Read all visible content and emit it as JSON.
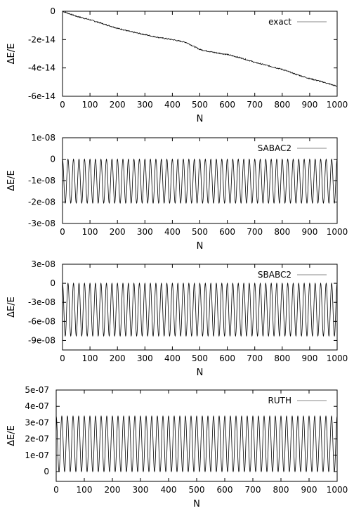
{
  "chart_data": [
    {
      "type": "line",
      "series": [
        {
          "name": "exact",
          "behavior": "drift",
          "x": [
            0,
            50,
            100,
            150,
            200,
            250,
            300,
            350,
            400,
            450,
            500,
            550,
            600,
            650,
            700,
            750,
            800,
            850,
            900,
            950,
            1000
          ],
          "values": [
            0,
            -3.5e-15,
            -6e-15,
            -9e-15,
            -1.2e-14,
            -1.45e-14,
            -1.65e-14,
            -1.85e-14,
            -2e-14,
            -2.2e-14,
            -2.7e-14,
            -2.9e-14,
            -3.05e-14,
            -3.3e-14,
            -3.6e-14,
            -3.85e-14,
            -4.1e-14,
            -4.45e-14,
            -4.75e-14,
            -5e-14,
            -5.3e-14
          ]
        }
      ],
      "xlabel": "N",
      "ylabel": "ΔE/E",
      "xlim": [
        0,
        1000
      ],
      "ylim": [
        -6e-14,
        0
      ],
      "xticks": [
        "0",
        "100",
        "200",
        "300",
        "400",
        "500",
        "600",
        "700",
        "800",
        "900",
        "1000"
      ],
      "yticks": [
        "0",
        "-2e-14",
        "-4e-14",
        "-6e-14"
      ],
      "ytick_values": [
        0,
        -2e-14,
        -4e-14,
        -6e-14
      ],
      "legend_position": "top-right",
      "grid": false,
      "line_color": "#000000"
    },
    {
      "type": "line",
      "series": [
        {
          "name": "SABAC2",
          "behavior": "oscillation",
          "periods": 50,
          "max": 0,
          "min": -2.05e-08
        }
      ],
      "xlabel": "N",
      "ylabel": "ΔE/E",
      "xlim": [
        0,
        1000
      ],
      "ylim": [
        -3e-08,
        1e-08
      ],
      "xticks": [
        "0",
        "100",
        "200",
        "300",
        "400",
        "500",
        "600",
        "700",
        "800",
        "900",
        "1000"
      ],
      "yticks": [
        "1e-08",
        "0",
        "-1e-08",
        "-2e-08",
        "-3e-08"
      ],
      "ytick_values": [
        1e-08,
        0,
        -1e-08,
        -2e-08,
        -3e-08
      ],
      "legend_position": "top-right",
      "grid": false,
      "line_color": "#000000"
    },
    {
      "type": "line",
      "series": [
        {
          "name": "SBABC2",
          "behavior": "oscillation",
          "periods": 50,
          "max": 0,
          "min": -8.3e-08
        }
      ],
      "xlabel": "N",
      "ylabel": "ΔE/E",
      "xlim": [
        0,
        1000
      ],
      "ylim": [
        -1.05e-07,
        3e-08
      ],
      "xticks": [
        "0",
        "100",
        "200",
        "300",
        "400",
        "500",
        "600",
        "700",
        "800",
        "900",
        "1000"
      ],
      "yticks": [
        "3e-08",
        "0",
        "-3e-08",
        "-6e-08",
        "-9e-08"
      ],
      "ytick_values": [
        3e-08,
        0,
        -3e-08,
        -6e-08,
        -9e-08
      ],
      "legend_position": "top-right",
      "grid": false,
      "line_color": "#000000"
    },
    {
      "type": "line",
      "series": [
        {
          "name": "RUTH",
          "behavior": "oscillation",
          "periods": 50,
          "max": 3.4e-07,
          "min": 0
        }
      ],
      "xlabel": "N",
      "ylabel": "ΔE/E",
      "xlim": [
        0,
        1000
      ],
      "ylim": [
        -6e-08,
        5e-07
      ],
      "xticks": [
        "0",
        "100",
        "200",
        "300",
        "400",
        "500",
        "600",
        "700",
        "800",
        "900",
        "1000"
      ],
      "yticks": [
        "5e-07",
        "4e-07",
        "3e-07",
        "2e-07",
        "1e-07",
        "0"
      ],
      "ytick_values": [
        5e-07,
        4e-07,
        3e-07,
        2e-07,
        1e-07,
        0
      ],
      "legend_position": "top-right",
      "grid": false,
      "line_color": "#000000"
    }
  ]
}
